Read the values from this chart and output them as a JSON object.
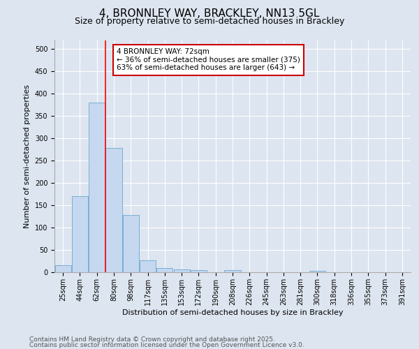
{
  "title": "4, BRONNLEY WAY, BRACKLEY, NN13 5GL",
  "subtitle": "Size of property relative to semi-detached houses in Brackley",
  "xlabel": "Distribution of semi-detached houses by size in Brackley",
  "ylabel": "Number of semi-detached properties",
  "categories": [
    "25sqm",
    "44sqm",
    "62sqm",
    "80sqm",
    "98sqm",
    "117sqm",
    "135sqm",
    "153sqm",
    "172sqm",
    "190sqm",
    "208sqm",
    "226sqm",
    "245sqm",
    "263sqm",
    "281sqm",
    "300sqm",
    "318sqm",
    "336sqm",
    "355sqm",
    "373sqm",
    "391sqm"
  ],
  "values": [
    15,
    170,
    380,
    278,
    128,
    27,
    9,
    6,
    5,
    0,
    5,
    0,
    0,
    0,
    0,
    3,
    0,
    0,
    0,
    0,
    0
  ],
  "bar_color": "#c5d8ef",
  "bar_edgecolor": "#7aaed4",
  "background_color": "#dde5f0",
  "plot_bg_color": "#dde5f0",
  "redline_x": 2.5,
  "annotation_text": "4 BRONNLEY WAY: 72sqm\n← 36% of semi-detached houses are smaller (375)\n63% of semi-detached houses are larger (643) →",
  "annotation_box_facecolor": "#ffffff",
  "annotation_box_edgecolor": "#cc0000",
  "ylim": [
    0,
    520
  ],
  "yticks": [
    0,
    50,
    100,
    150,
    200,
    250,
    300,
    350,
    400,
    450,
    500
  ],
  "footer1": "Contains HM Land Registry data © Crown copyright and database right 2025.",
  "footer2": "Contains public sector information licensed under the Open Government Licence v3.0.",
  "title_fontsize": 11,
  "subtitle_fontsize": 9,
  "axis_label_fontsize": 8,
  "tick_fontsize": 7,
  "annotation_fontsize": 7.5,
  "footer_fontsize": 6.5
}
